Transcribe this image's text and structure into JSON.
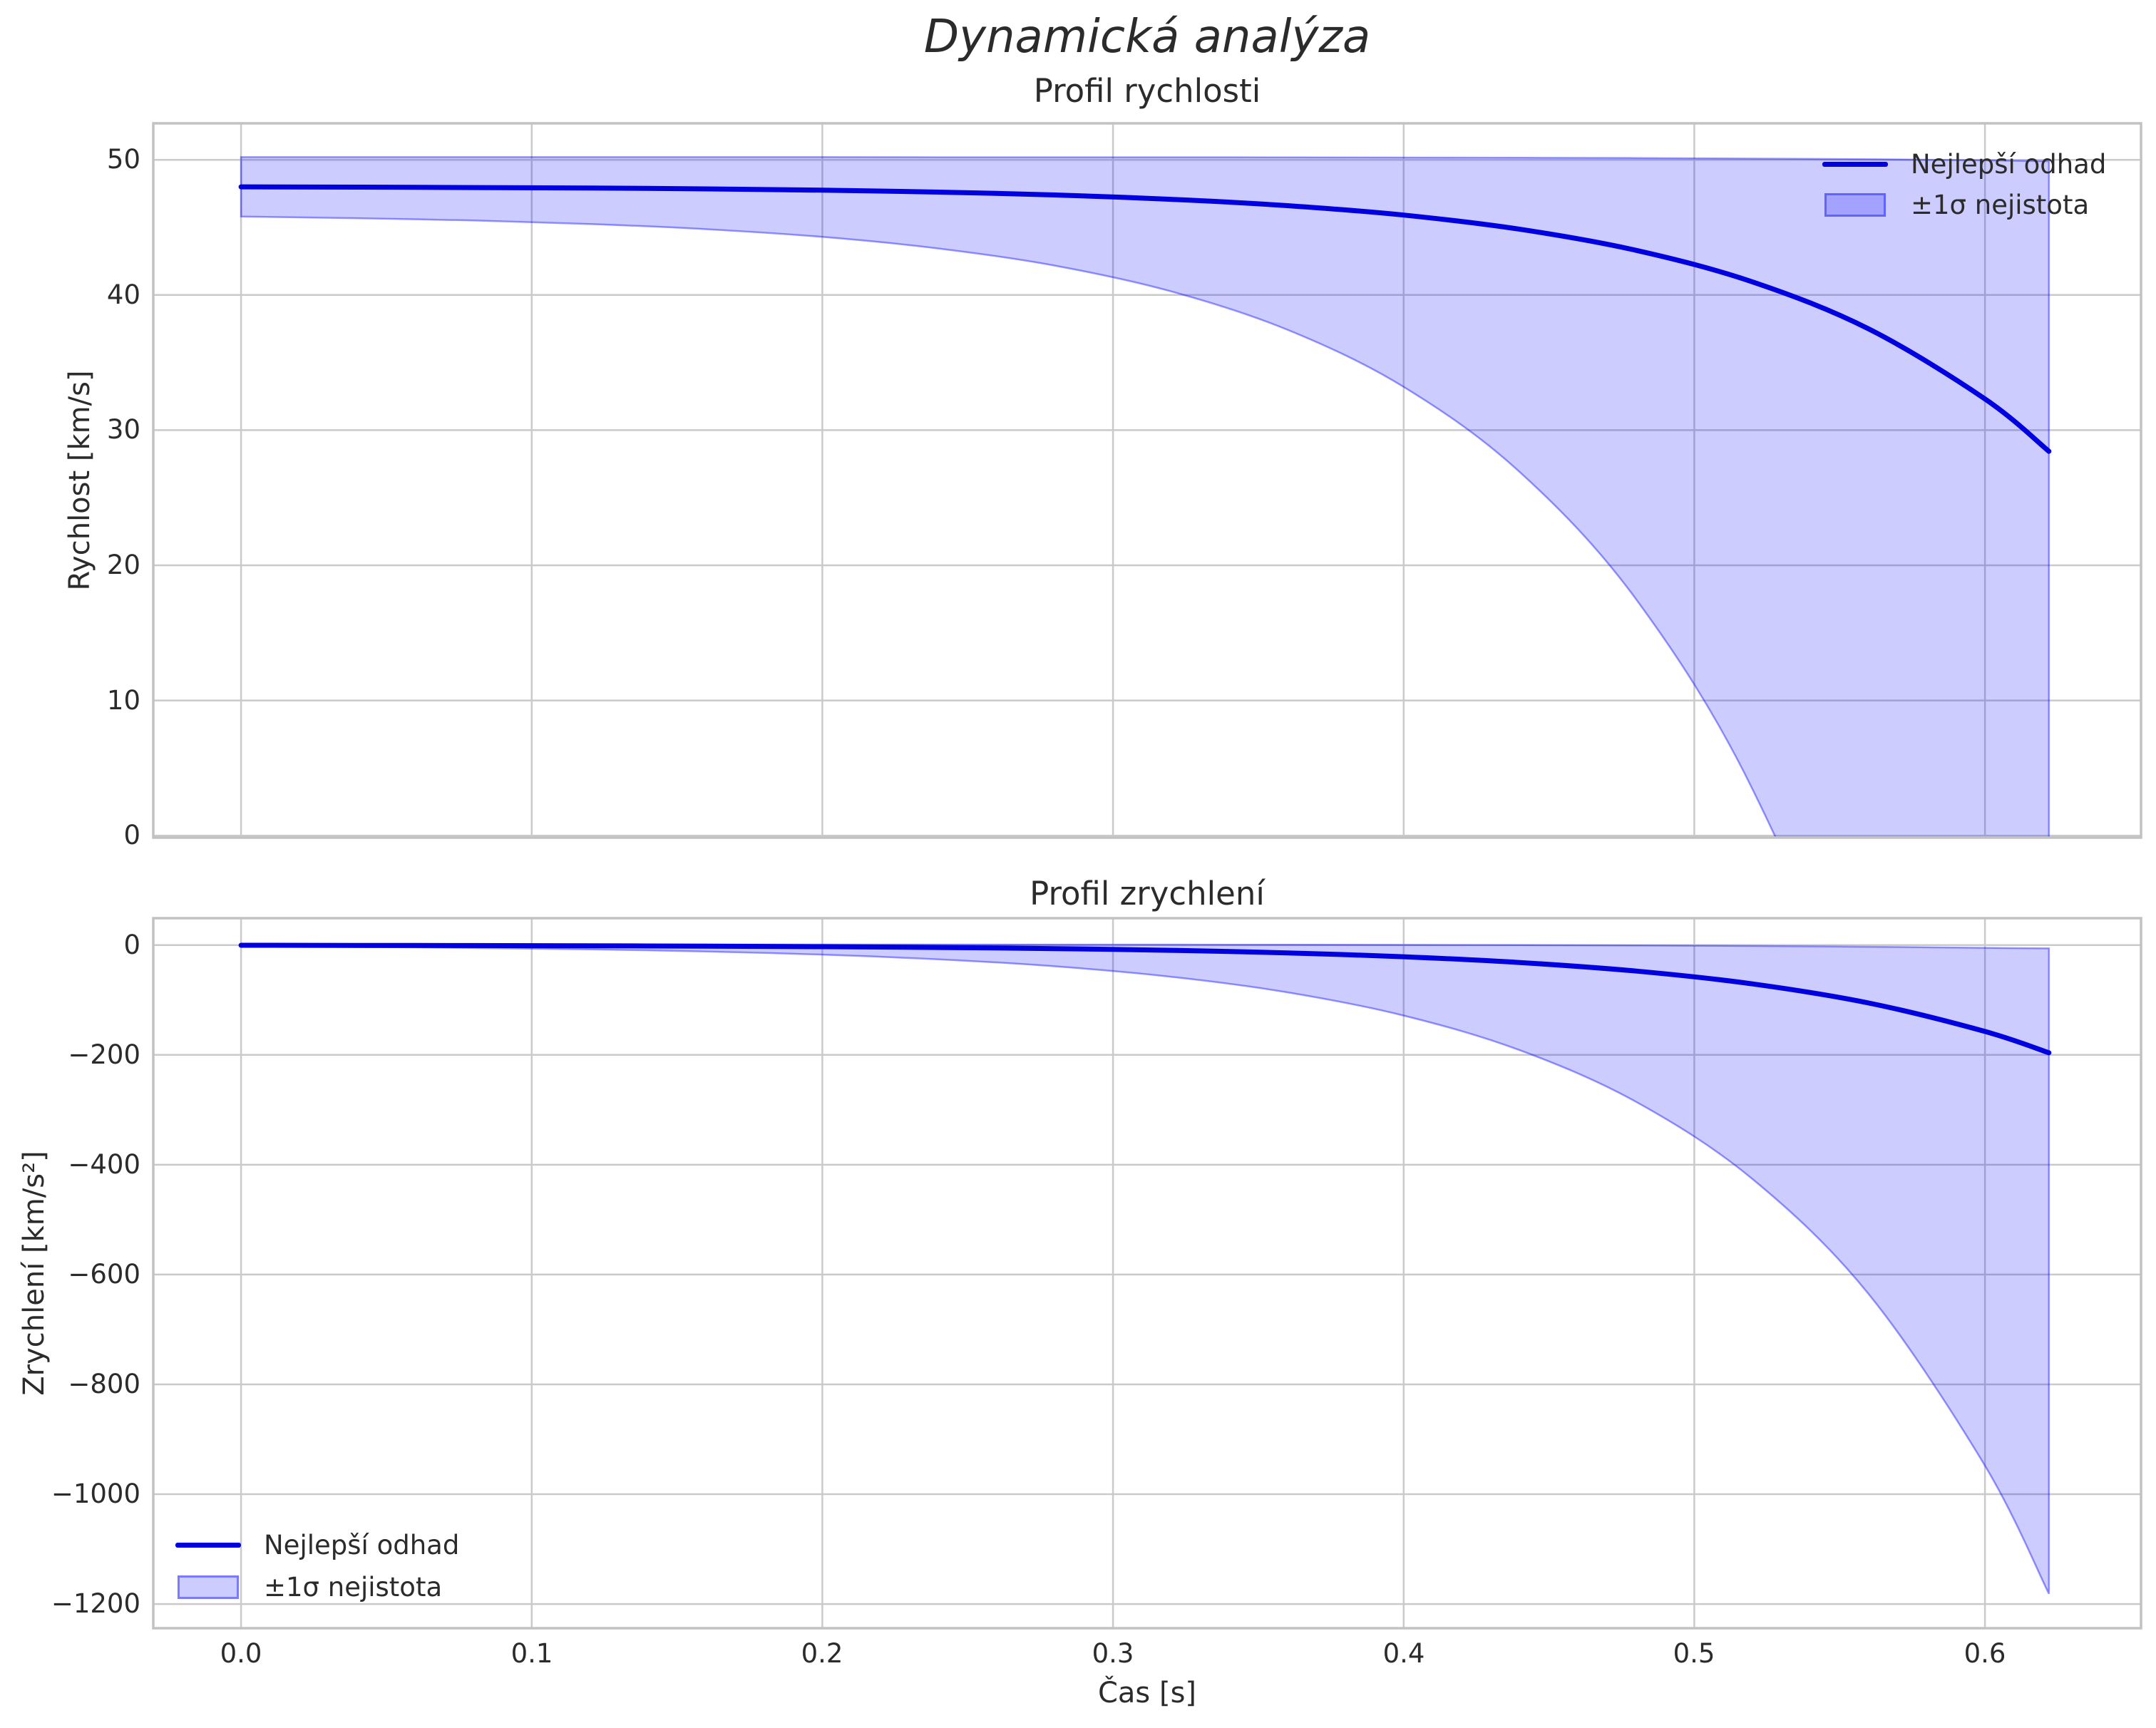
{
  "figure": {
    "suptitle": "Dynamická analýza",
    "background_color": "#ffffff",
    "text_color": "#2b2b2b",
    "line_color": "#0000e0",
    "band_fill_color": "rgba(0,0,255,0.20)",
    "band_edge_color": "rgba(0,0,255,0.40)",
    "grid_color": "#cacaca",
    "spine_color": "#c2c2c2"
  },
  "chart_data": [
    {
      "type": "line",
      "title": "Profil rychlosti",
      "ylabel": "Rychlost [km/s]",
      "xlabel": "",
      "x": [
        0,
        0.04,
        0.08,
        0.12,
        0.16,
        0.2,
        0.24,
        0.28,
        0.32,
        0.36,
        0.4,
        0.44,
        0.48,
        0.52,
        0.56,
        0.6,
        0.622
      ],
      "series": [
        {
          "name": "Nejlepší odhad",
          "role": "best-line",
          "values": [
            48.0,
            47.98,
            47.95,
            47.91,
            47.85,
            47.75,
            47.61,
            47.4,
            47.08,
            46.61,
            45.91,
            44.86,
            43.3,
            40.97,
            37.49,
            32.31,
            28.43
          ]
        },
        {
          "name": "±1σ nejistota",
          "role": "uncertainty-band",
          "upper": [
            50.2,
            50.2,
            50.2,
            50.2,
            50.2,
            50.2,
            50.19,
            50.19,
            50.19,
            50.18,
            50.17,
            50.15,
            50.13,
            50.09,
            50.04,
            49.96,
            49.9
          ],
          "lower": [
            45.8,
            45.68,
            45.51,
            45.25,
            44.87,
            44.3,
            43.44,
            42.17,
            40.27,
            37.43,
            33.2,
            26.89,
            17.48,
            3.44,
            -17.52,
            -48.77,
            -72.1
          ]
        }
      ],
      "xlim": [
        -0.0302,
        0.6537
      ],
      "ylim": [
        -0.15,
        52.7
      ],
      "xticks": {
        "values": [
          0,
          0.1,
          0.2,
          0.3,
          0.4,
          0.5,
          0.6
        ],
        "labels": [
          "0.0",
          "0.1",
          "0.2",
          "0.3",
          "0.4",
          "0.5",
          "0.6"
        ],
        "show_labels": false
      },
      "yticks": {
        "values": [
          0,
          10,
          20,
          30,
          40,
          50
        ],
        "labels": [
          "0",
          "10",
          "20",
          "30",
          "40",
          "50"
        ]
      },
      "grid": true,
      "legend": {
        "position": "upper right",
        "labels": [
          "Nejlepší odhad",
          "±1σ nejistota"
        ]
      }
    },
    {
      "type": "line",
      "title": "Profil zrychlení",
      "ylabel": "Zrychlení [km/s²]",
      "xlabel": "Čas [s]",
      "x": [
        0,
        0.04,
        0.08,
        0.12,
        0.16,
        0.2,
        0.24,
        0.28,
        0.32,
        0.36,
        0.4,
        0.44,
        0.48,
        0.52,
        0.56,
        0.6,
        0.622
      ],
      "series": [
        {
          "name": "Nejlepší odhad",
          "role": "best-line",
          "values": [
            -0.39,
            -0.58,
            -0.87,
            -1.29,
            -1.93,
            -2.88,
            -4.3,
            -6.41,
            -9.57,
            -14.27,
            -21.29,
            -31.77,
            -47.39,
            -70.7,
            -105.47,
            -157.34,
            -196.05
          ]
        },
        {
          "name": "±1σ nejistota",
          "role": "uncertainty-band",
          "upper": [
            1.0,
            1.0,
            1.0,
            1.0,
            1.0,
            1.0,
            0.9,
            0.9,
            0.8,
            0.6,
            0.3,
            -0.1,
            -0.7,
            -1.6,
            -3.0,
            -5.0,
            -6.0
          ],
          "lower": [
            -2.35,
            -3.51,
            -5.23,
            -7.8,
            -11.64,
            -17.36,
            -25.9,
            -38.64,
            -57.65,
            -86.01,
            -128.31,
            -191.41,
            -285.55,
            -425.99,
            -635.5,
            -948.06,
            -1181.35
          ]
        }
      ],
      "xlim": [
        -0.0302,
        0.6537
      ],
      "ylim": [
        -1244,
        49
      ],
      "xticks": {
        "values": [
          0,
          0.1,
          0.2,
          0.3,
          0.4,
          0.5,
          0.6
        ],
        "labels": [
          "0.0",
          "0.1",
          "0.2",
          "0.3",
          "0.4",
          "0.5",
          "0.6"
        ],
        "show_labels": true
      },
      "yticks": {
        "values": [
          0,
          -200,
          -400,
          -600,
          -800,
          -1000,
          -1200
        ],
        "labels": [
          "0",
          "−200",
          "−400",
          "−600",
          "−800",
          "−1000",
          "−1200"
        ]
      },
      "grid": true,
      "legend": {
        "position": "lower left",
        "labels": [
          "Nejlepší odhad",
          "±1σ nejistota"
        ]
      }
    }
  ]
}
